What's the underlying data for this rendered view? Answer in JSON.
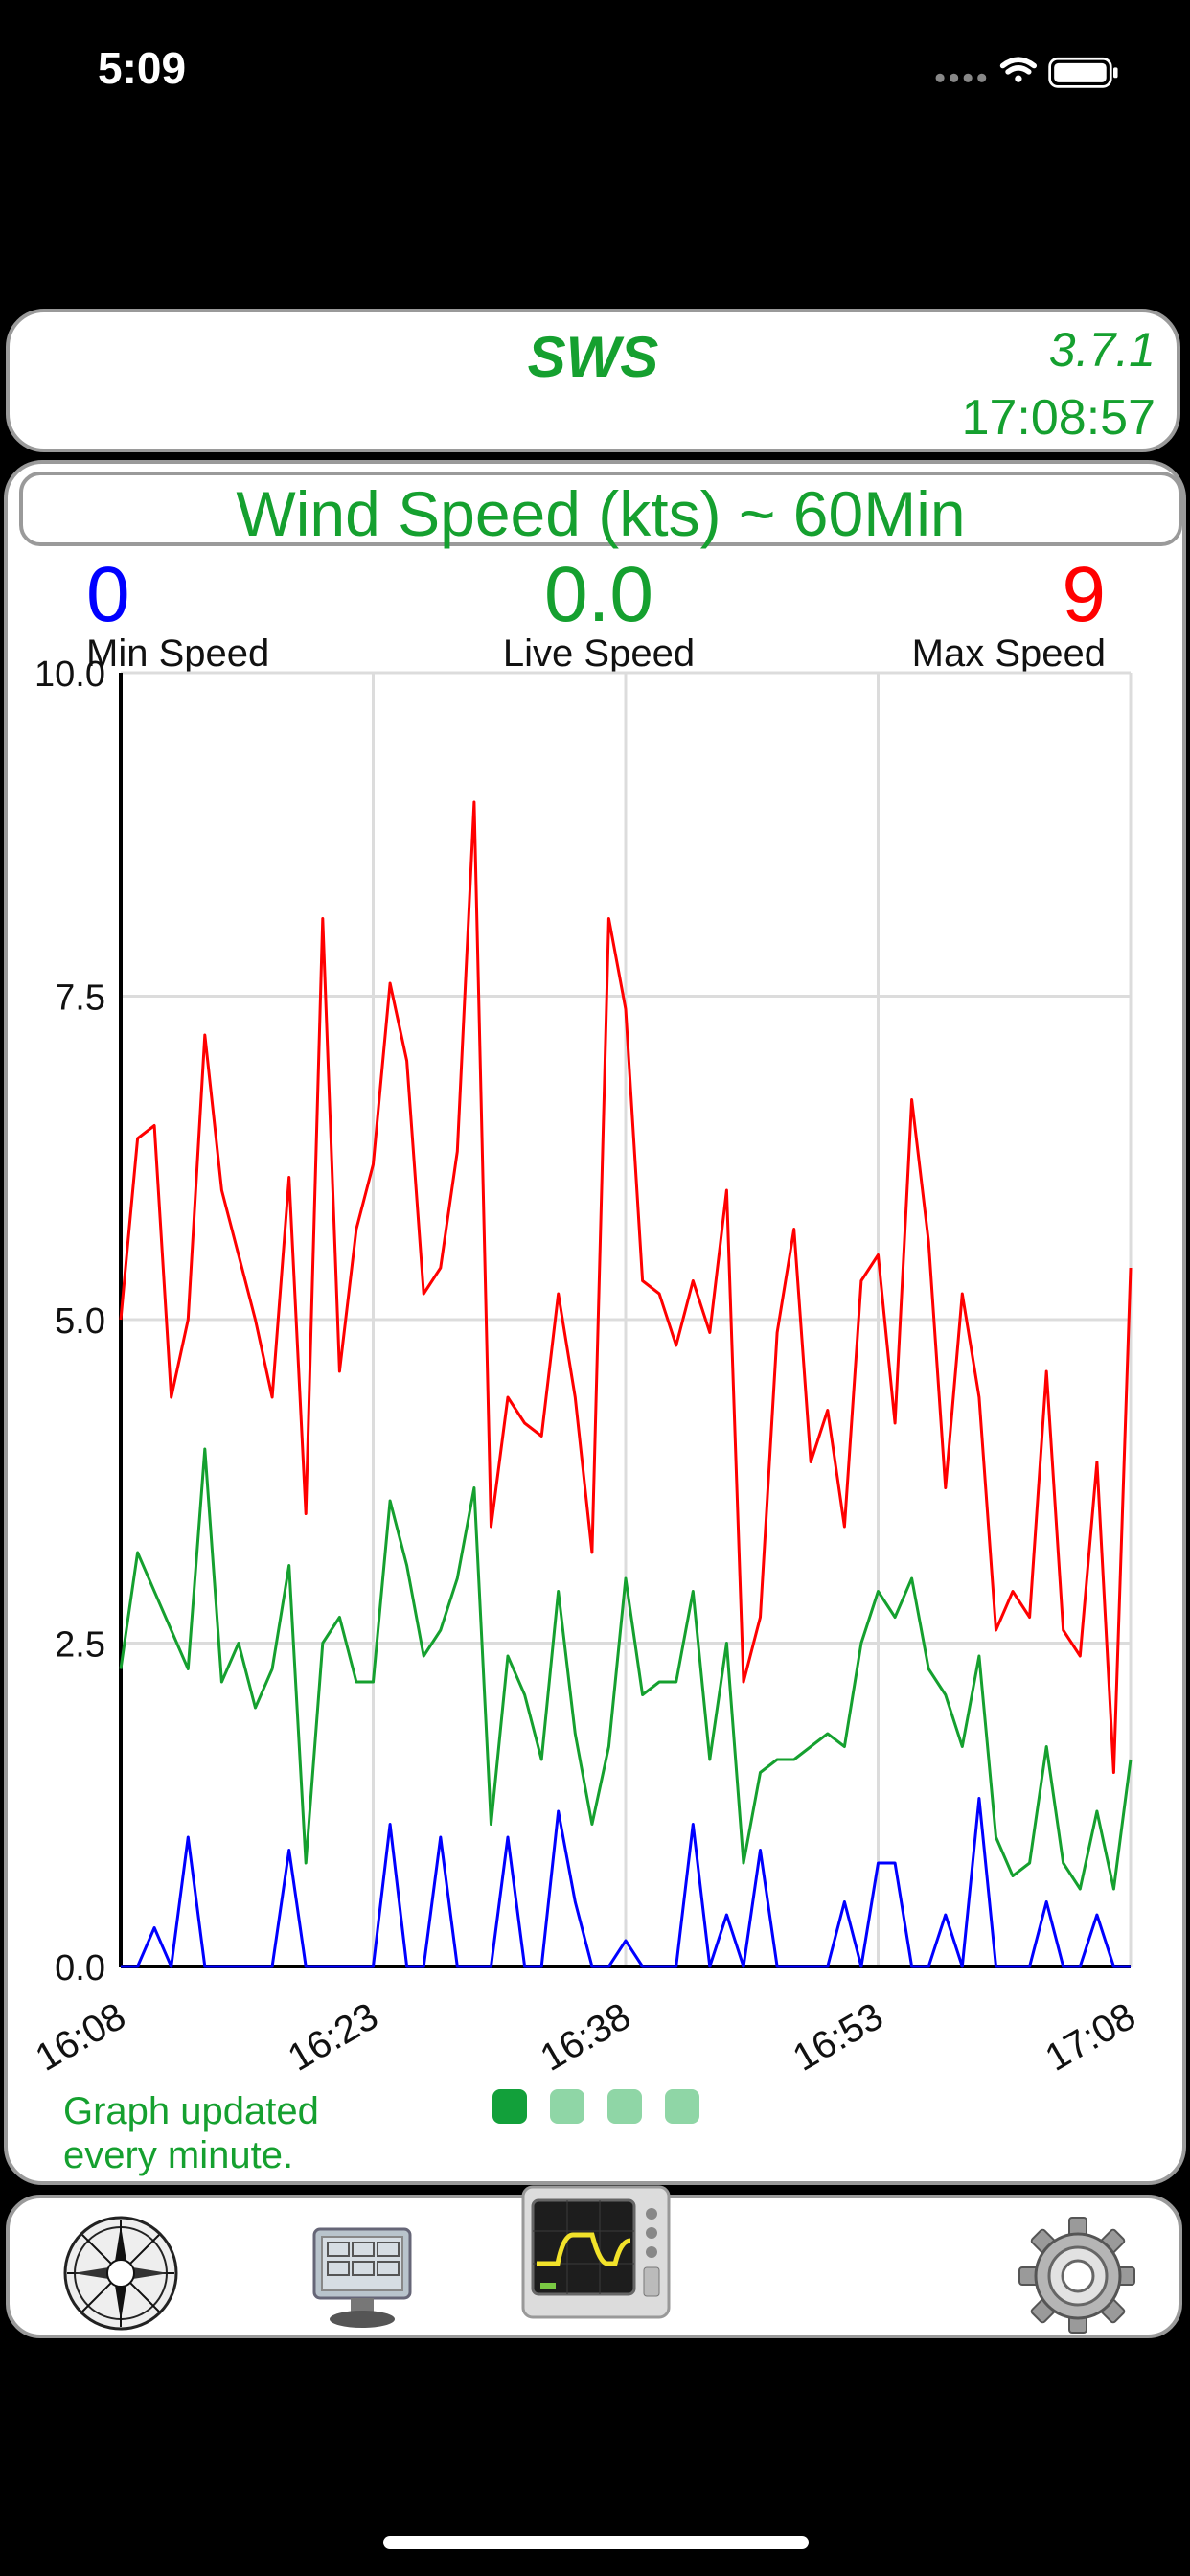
{
  "status_bar": {
    "time": "5:09"
  },
  "header": {
    "app_name": "SWS",
    "version": "3.7.1",
    "clock": "17:08:57"
  },
  "graph": {
    "title": "Wind Speed (kts) ~ 60Min",
    "min": {
      "value": "0",
      "label": "Min Speed",
      "color": "#0000ff"
    },
    "live": {
      "value": "0.0",
      "label": "Live Speed",
      "color": "#15a02f"
    },
    "max": {
      "value": "9",
      "label": "Max Speed",
      "color": "#ff0000"
    },
    "footer_note_line1": "Graph updated",
    "footer_note_line2": "every minute.",
    "page_dots": {
      "count": 4,
      "active": 0
    }
  },
  "tabs": [
    {
      "name": "compass"
    },
    {
      "name": "instruments"
    },
    {
      "name": "graph",
      "selected": true
    },
    {
      "name": "settings"
    }
  ],
  "chart_data": {
    "type": "line",
    "title": "Wind Speed (kts) ~ 60Min",
    "x_tick_labels": [
      "16:08",
      "16:23",
      "16:38",
      "16:53",
      "17:08"
    ],
    "y_tick_labels": [
      "0.0",
      "2.5",
      "5.0",
      "7.5",
      "10.0"
    ],
    "ylim": [
      0,
      10
    ],
    "grid": true,
    "series": [
      {
        "color": "#ff0000",
        "values": [
          5.0,
          6.4,
          6.5,
          4.4,
          5.0,
          7.2,
          6.0,
          5.5,
          5.0,
          4.4,
          6.1,
          3.5,
          8.1,
          4.6,
          5.7,
          6.2,
          7.6,
          7.0,
          5.2,
          5.4,
          6.3,
          9.0,
          3.4,
          4.4,
          4.2,
          4.1,
          5.2,
          4.4,
          3.2,
          8.1,
          7.4,
          5.3,
          5.2,
          4.8,
          5.3,
          4.9,
          6.0,
          2.2,
          2.7,
          4.9,
          5.7,
          3.9,
          4.3,
          3.4,
          5.3,
          5.5,
          4.2,
          6.7,
          5.6,
          3.7,
          5.2,
          4.4,
          2.6,
          2.9,
          2.7,
          4.6,
          2.6,
          2.4,
          3.9,
          1.5,
          5.4
        ]
      },
      {
        "color": "#15a02f",
        "values": [
          2.3,
          3.2,
          2.9,
          2.6,
          2.3,
          4.0,
          2.2,
          2.5,
          2.0,
          2.3,
          3.1,
          0.8,
          2.5,
          2.7,
          2.2,
          2.2,
          3.6,
          3.1,
          2.4,
          2.6,
          3.0,
          3.7,
          1.1,
          2.4,
          2.1,
          1.6,
          2.9,
          1.8,
          1.1,
          1.7,
          3.0,
          2.1,
          2.2,
          2.2,
          2.9,
          1.6,
          2.5,
          0.8,
          1.5,
          1.6,
          1.6,
          1.7,
          1.8,
          1.7,
          2.5,
          2.9,
          2.7,
          3.0,
          2.3,
          2.1,
          1.7,
          2.4,
          1.0,
          0.7,
          0.8,
          1.7,
          0.8,
          0.6,
          1.2,
          0.6,
          1.6
        ]
      },
      {
        "color": "#0000ff",
        "values": [
          0,
          0,
          0.3,
          0,
          1.0,
          0,
          0,
          0,
          0,
          0,
          0.9,
          0,
          0,
          0,
          0,
          0,
          1.1,
          0,
          0,
          1.0,
          0,
          0,
          0,
          1.0,
          0,
          0,
          1.2,
          0.5,
          0,
          0,
          0.2,
          0,
          0,
          0,
          1.1,
          0,
          0.4,
          0,
          0.9,
          0,
          0,
          0,
          0,
          0.5,
          0,
          0.8,
          0.8,
          0,
          0,
          0.4,
          0,
          1.3,
          0,
          0,
          0,
          0.5,
          0,
          0,
          0.4,
          0,
          0
        ]
      }
    ]
  }
}
